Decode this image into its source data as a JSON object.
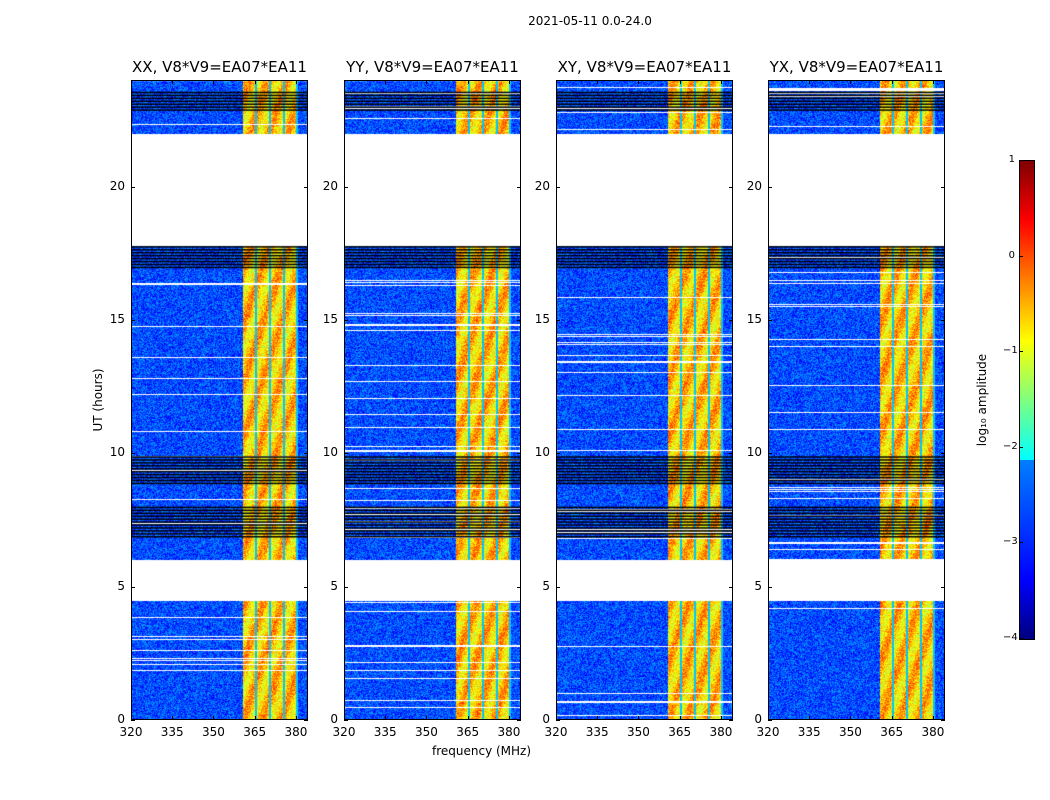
{
  "chart_data": {
    "type": "heatmap",
    "title": "2021-05-11 0.0-24.0",
    "xlabel": "frequency (MHz)",
    "ylabel": "UT (hours)",
    "xlim": [
      320,
      384.4
    ],
    "ylim": [
      0,
      24
    ],
    "xticks": [
      "320",
      "335",
      "350",
      "365",
      "380"
    ],
    "xtick_values": [
      320,
      335,
      350,
      365,
      380
    ],
    "yticks": [
      "0",
      "5",
      "10",
      "15",
      "20"
    ],
    "ytick_values": [
      0,
      5,
      10,
      15,
      20
    ],
    "panels": [
      {
        "title": "XX, V8*V9=EA07*EA11"
      },
      {
        "title": "YY, V8*V9=EA07*EA11"
      },
      {
        "title": "XY, V8*V9=EA07*EA11"
      },
      {
        "title": "YX, V8*V9=EA07*EA11"
      }
    ],
    "bands": [
      {
        "freq_range_mhz": [
          320,
          360.7
        ],
        "log10_amplitude": -3.0
      },
      {
        "freq_range_mhz": [
          360.7,
          380.4
        ],
        "log10_amplitude": -0.6
      },
      {
        "freq_range_mhz": [
          380.4,
          384.4
        ],
        "log10_amplitude": -3.0
      }
    ],
    "flagged_gaps_hours": [
      [
        4.5,
        6.0
      ],
      [
        17.8,
        22.0
      ]
    ],
    "flagged_line_regions_hours": [
      [
        17.0,
        17.8
      ],
      [
        8.9,
        9.9
      ],
      [
        6.9,
        8.1
      ],
      [
        22.9,
        23.6
      ]
    ],
    "colorbar": {
      "label": "log₁₀ amplitude",
      "range": [
        -4,
        1
      ],
      "ticks": [
        "1",
        "0",
        "−1",
        "−2",
        "−3",
        "−4"
      ],
      "tick_values": [
        1,
        0,
        -1,
        -2,
        -3,
        -4
      ],
      "colormap": "jet"
    }
  }
}
